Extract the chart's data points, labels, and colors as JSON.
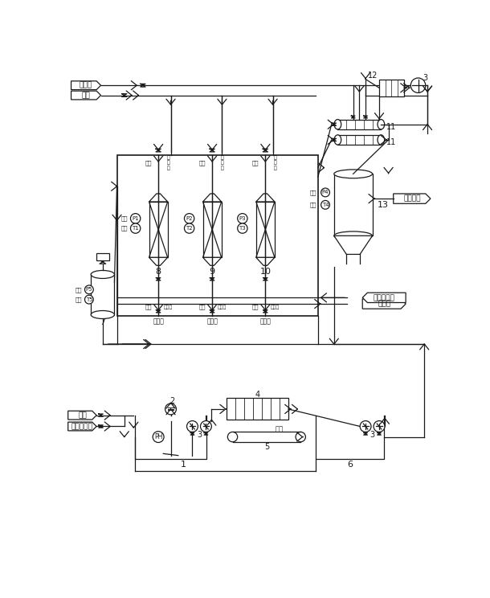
{
  "bg_color": "#ffffff",
  "line_color": "#1a1a1a",
  "labels": {
    "cooling_water": "冷却水",
    "steam": "蒸汽",
    "calcium_powder": "钙粉",
    "hcl_wastewater": "含盐酸废水",
    "waste_water_pool": "废水池",
    "backwash_water": "反冲自来水",
    "product_recovery": "产品回收",
    "waste_residue": "废渣",
    "pressure": "压力",
    "temperature": "温度",
    "steam_in": "蒸汽",
    "oil_press": "油\n压\n口",
    "backflush": "反冲口",
    "water_out": "出水口",
    "ph": "PH"
  },
  "nums": {
    "n1": "1",
    "n2": "2",
    "n3": "3",
    "n4": "4",
    "n5": "5",
    "n6": "6",
    "n7": "7",
    "n8": "8",
    "n9": "9",
    "n10": "10",
    "n11": "11",
    "n12": "12",
    "n13": "13"
  }
}
